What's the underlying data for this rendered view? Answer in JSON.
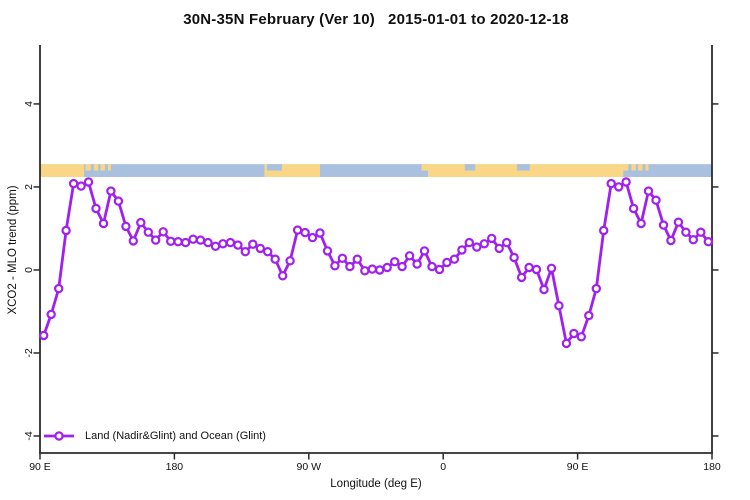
{
  "title": "30N-35N February (Ver 10)   2015-01-01 to 2020-12-18",
  "colors": {
    "series": "#A020F0",
    "land": "#FAD687",
    "ocean": "#A9C1DE",
    "axis": "#2b2b2b",
    "text": "#111111"
  },
  "chart_data": {
    "type": "line",
    "title": "30N-35N February (Ver 10)   2015-01-01 to 2020-12-18",
    "xlabel": "Longitude (deg E)",
    "ylabel": "XCO2 - MLO trend (ppm)",
    "xlim": [
      90,
      540
    ],
    "ylim": [
      -4.41,
      5.42
    ],
    "grid": false,
    "legend_position": "bottom-left",
    "x_ticks": [
      {
        "value": 90,
        "label": "90 E"
      },
      {
        "value": 180,
        "label": "180"
      },
      {
        "value": 270,
        "label": "90 W"
      },
      {
        "value": 360,
        "label": "0"
      },
      {
        "value": 450,
        "label": "90 E"
      },
      {
        "value": 540,
        "label": "180"
      }
    ],
    "y_ticks": [
      {
        "value": 4,
        "label": "4"
      },
      {
        "value": 2,
        "label": "2"
      },
      {
        "value": 0,
        "label": "0"
      },
      {
        "value": -2,
        "label": "-2"
      },
      {
        "value": -4,
        "label": "-4"
      }
    ],
    "series": [
      {
        "name": "Land (Nadir&Glint) and Ocean (Glint)",
        "color": "#A020F0",
        "marker": "open-circle",
        "x": [
          92.5,
          97.5,
          102.5,
          107.5,
          112.5,
          117.5,
          122.5,
          127.5,
          132.5,
          137.5,
          142.5,
          147.5,
          152.5,
          157.5,
          162.5,
          167.5,
          172.5,
          177.5,
          182.5,
          187.5,
          192.5,
          197.5,
          202.5,
          207.5,
          212.5,
          217.5,
          222.5,
          227.5,
          232.5,
          237.5,
          242.5,
          247.5,
          252.5,
          257.5,
          262.5,
          267.5,
          272.5,
          277.5,
          282.5,
          287.5,
          292.5,
          297.5,
          302.5,
          307.5,
          312.5,
          317.5,
          322.5,
          327.5,
          332.5,
          337.5,
          342.5,
          347.5,
          352.5,
          357.5,
          362.5,
          367.5,
          372.5,
          377.5,
          382.5,
          387.5,
          392.5,
          397.5,
          402.5,
          407.5,
          412.5,
          417.5,
          422.5,
          427.5,
          432.5,
          437.5,
          442.5,
          447.5,
          452.5,
          457.5,
          462.5,
          467.5,
          472.5,
          477.5,
          482.5,
          487.5,
          492.5,
          497.5,
          502.5,
          507.5,
          512.5,
          517.5,
          522.5,
          527.5,
          532.5,
          537.5
        ],
        "y": [
          -1.58,
          -1.07,
          -0.45,
          0.95,
          2.08,
          2.02,
          2.12,
          1.48,
          1.12,
          1.9,
          1.66,
          1.05,
          0.7,
          1.14,
          0.91,
          0.72,
          0.92,
          0.69,
          0.68,
          0.66,
          0.74,
          0.72,
          0.66,
          0.57,
          0.63,
          0.66,
          0.6,
          0.44,
          0.62,
          0.52,
          0.44,
          0.26,
          -0.14,
          0.22,
          0.96,
          0.9,
          0.78,
          0.89,
          0.46,
          0.1,
          0.28,
          0.08,
          0.26,
          -0.02,
          0.02,
          0.0,
          0.06,
          0.2,
          0.08,
          0.34,
          0.14,
          0.46,
          0.08,
          0.01,
          0.18,
          0.26,
          0.48,
          0.66,
          0.55,
          0.63,
          0.76,
          0.52,
          0.66,
          0.3,
          -0.18,
          0.06,
          0.01,
          -0.47,
          0.04,
          -0.86,
          -1.77,
          -1.53,
          -1.61,
          -1.1,
          -0.45,
          0.95,
          2.08,
          2.0,
          2.12,
          1.48,
          1.12,
          1.9,
          1.68,
          1.08,
          0.71,
          1.15,
          0.91,
          0.73,
          0.91,
          0.68
        ]
      }
    ],
    "map_band": {
      "description": "land/ocean strip along 30N-35N latitude band",
      "y_top_value": 2.55,
      "y_bottom_value": 2.24,
      "land_color": "#FAD687",
      "ocean_color": "#A9C1DE",
      "base_segments": [
        {
          "from": 90,
          "to": 119.5,
          "type": "land"
        },
        {
          "from": 119.5,
          "to": 240.5,
          "type": "ocean"
        },
        {
          "from": 240.5,
          "to": 277.5,
          "type": "land"
        },
        {
          "from": 277.5,
          "to": 350,
          "type": "ocean"
        },
        {
          "from": 350,
          "to": 480.5,
          "type": "land"
        },
        {
          "from": 480.5,
          "to": 540,
          "type": "ocean"
        }
      ],
      "detail_chips": [
        {
          "from": 120.5,
          "to": 124,
          "type": "land",
          "pos": "top"
        },
        {
          "from": 126,
          "to": 129,
          "type": "land",
          "pos": "top"
        },
        {
          "from": 130.5,
          "to": 133.5,
          "type": "land",
          "pos": "top"
        },
        {
          "from": 135.5,
          "to": 137.5,
          "type": "land",
          "pos": "top"
        },
        {
          "from": 242,
          "to": 252,
          "type": "ocean",
          "pos": "top"
        },
        {
          "from": 345.5,
          "to": 350,
          "type": "land",
          "pos": "top"
        },
        {
          "from": 374.5,
          "to": 381.5,
          "type": "ocean",
          "pos": "top"
        },
        {
          "from": 409.5,
          "to": 418,
          "type": "ocean",
          "pos": "top"
        },
        {
          "from": 480.5,
          "to": 484,
          "type": "land",
          "pos": "top"
        },
        {
          "from": 486,
          "to": 489,
          "type": "land",
          "pos": "top"
        },
        {
          "from": 490.5,
          "to": 493.5,
          "type": "land",
          "pos": "top"
        },
        {
          "from": 495.5,
          "to": 497.5,
          "type": "land",
          "pos": "top"
        }
      ]
    }
  },
  "legend": {
    "label": "Land (Nadir&Glint) and Ocean (Glint)"
  }
}
